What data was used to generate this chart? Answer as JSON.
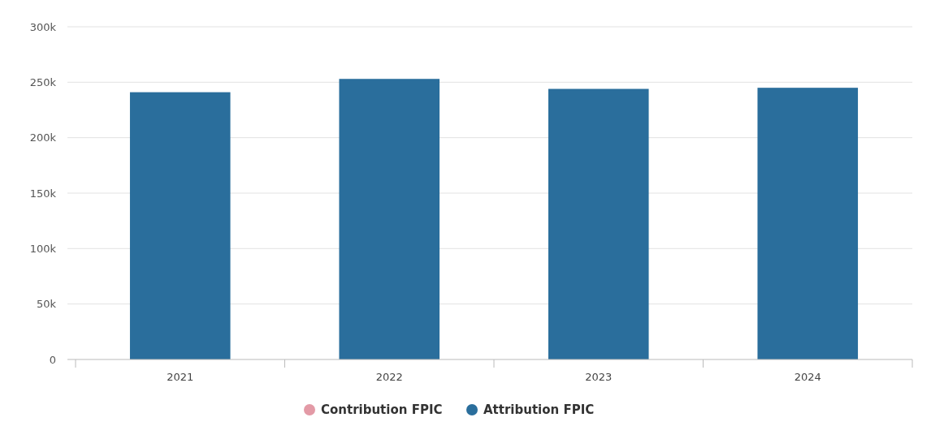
{
  "chart_data": {
    "type": "bar",
    "categories": [
      "2021",
      "2022",
      "2023",
      "2024"
    ],
    "series": [
      {
        "name": "Contribution FPIC",
        "color": "#e39aa6",
        "values": [
          null,
          null,
          null,
          null
        ]
      },
      {
        "name": "Attribution FPIC",
        "color": "#2a6e9c",
        "values": [
          241000,
          253000,
          244000,
          245000
        ]
      }
    ],
    "ylim": [
      0,
      300000
    ],
    "yticks": [
      {
        "value": 0,
        "label": "0"
      },
      {
        "value": 50000,
        "label": "50k"
      },
      {
        "value": 100000,
        "label": "100k"
      },
      {
        "value": 150000,
        "label": "150k"
      },
      {
        "value": 200000,
        "label": "200k"
      },
      {
        "value": 250000,
        "label": "250k"
      },
      {
        "value": 300000,
        "label": "300k"
      }
    ],
    "grid": "y",
    "legend": "bottom"
  }
}
